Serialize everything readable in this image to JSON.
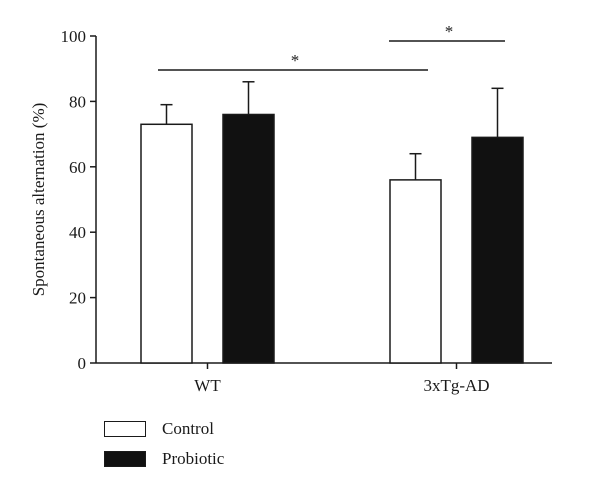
{
  "chart_data": {
    "type": "bar",
    "categories": [
      "WT",
      "3xTg-AD"
    ],
    "series": [
      {
        "name": "Control",
        "values": [
          73,
          56
        ],
        "errors": [
          6,
          8
        ],
        "color": "#ffffff"
      },
      {
        "name": "Probiotic",
        "values": [
          76,
          69
        ],
        "errors": [
          10,
          15
        ],
        "color": "#111111"
      }
    ],
    "ylabel": "Spontaneous alternation (%)",
    "xlabel": "",
    "ylim": [
      0,
      100
    ],
    "yticks": [
      0,
      20,
      40,
      60,
      80,
      100
    ],
    "grid": false,
    "legend_position": "bottom-left",
    "significance": [
      {
        "label": "*",
        "from": "WT",
        "to": "3xTg-AD Control"
      },
      {
        "label": "*",
        "from": "3xTg-AD Control",
        "to": "3xTg-AD Probiotic"
      }
    ]
  }
}
